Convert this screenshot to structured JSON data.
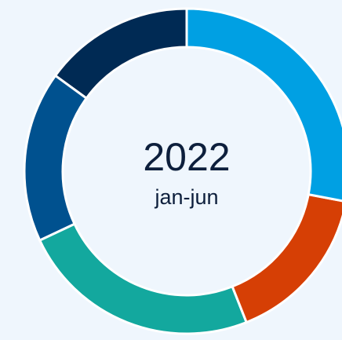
{
  "chart_data": {
    "type": "donut",
    "title": "2022",
    "subtitle": "jan-jun",
    "values": [
      28,
      16,
      24,
      17,
      15
    ],
    "colors": [
      "#00a0e3",
      "#d63f05",
      "#13a89e",
      "#00518f",
      "#002a54"
    ]
  }
}
